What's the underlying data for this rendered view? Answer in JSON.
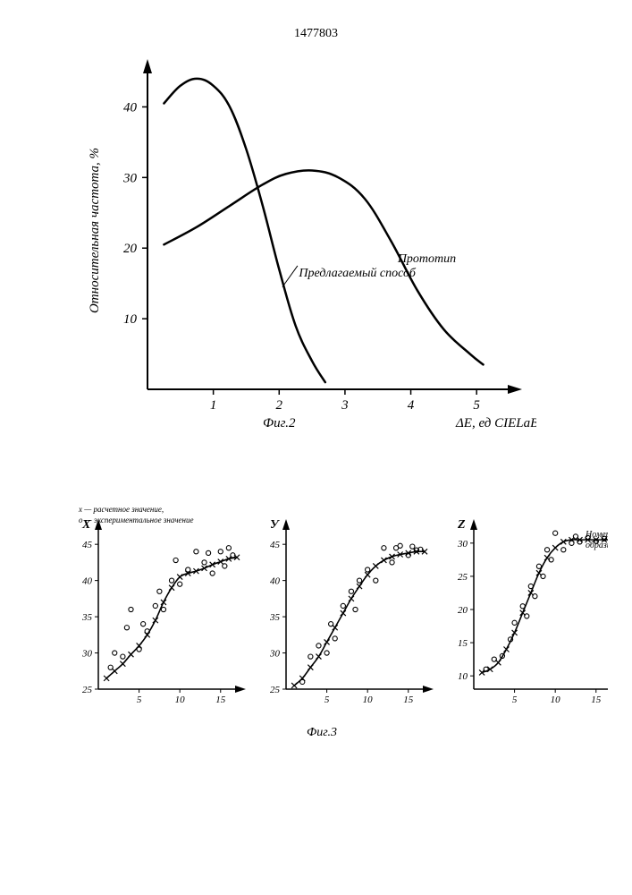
{
  "page_number": "1477803",
  "fig2": {
    "type": "line",
    "title": "Фиг.2",
    "title_fontsize": 15,
    "xlabel": "ΔE, ед CIELаВ",
    "ylabel": "Относительная частота, %",
    "label_fontsize": 15,
    "xlim": [
      0,
      5.5
    ],
    "ylim": [
      0,
      45
    ],
    "xticks": [
      1,
      2,
      3,
      4,
      5
    ],
    "yticks": [
      10,
      20,
      30,
      40
    ],
    "axis_color": "#000000",
    "line_color": "#000000",
    "line_width": 2.5,
    "background_color": "#ffffff",
    "series": [
      {
        "name": "Предлагаемый способ",
        "label_x": 2.3,
        "label_y": 16,
        "points": [
          [
            0.25,
            40.5
          ],
          [
            0.5,
            43
          ],
          [
            0.75,
            44
          ],
          [
            1.0,
            43
          ],
          [
            1.25,
            40
          ],
          [
            1.5,
            34
          ],
          [
            1.75,
            26
          ],
          [
            2.0,
            17
          ],
          [
            2.25,
            9
          ],
          [
            2.5,
            4
          ],
          [
            2.7,
            1
          ]
        ]
      },
      {
        "name": "Прототип",
        "label_x": 3.8,
        "label_y": 18,
        "points": [
          [
            0.25,
            20.5
          ],
          [
            0.75,
            23
          ],
          [
            1.25,
            26
          ],
          [
            1.75,
            29
          ],
          [
            2.1,
            30.5
          ],
          [
            2.5,
            31
          ],
          [
            2.9,
            30
          ],
          [
            3.3,
            27
          ],
          [
            3.7,
            21
          ],
          [
            4.1,
            14
          ],
          [
            4.5,
            8.5
          ],
          [
            4.9,
            5
          ],
          [
            5.1,
            3.5
          ]
        ]
      }
    ]
  },
  "fig3": {
    "type": "scatter",
    "title": "Фиг.3",
    "title_fontsize": 14,
    "legend": {
      "x_label": "х — расчетное значение,",
      "o_label": "о — экспериментальное значение",
      "fontsize": 9
    },
    "axis_color": "#000000",
    "line_color": "#000000",
    "marker_color": "#000000",
    "background_color": "#ffffff",
    "xlabel_common": "Номер образца",
    "xlabel_fontsize": 10,
    "panels": [
      {
        "yletter": "X",
        "xlim": [
          0,
          17
        ],
        "ylim": [
          25,
          47
        ],
        "xticks": [
          5,
          10,
          15
        ],
        "yticks": [
          25,
          30,
          35,
          40,
          45
        ],
        "line_x": [
          [
            1,
            26.5
          ],
          [
            2,
            27.5
          ],
          [
            3,
            28.5
          ],
          [
            4,
            29.8
          ],
          [
            5,
            31
          ],
          [
            6,
            32.5
          ],
          [
            7,
            34.5
          ],
          [
            8,
            37
          ],
          [
            9,
            39
          ],
          [
            10,
            40.5
          ],
          [
            11,
            41
          ],
          [
            12,
            41.3
          ],
          [
            13,
            41.7
          ],
          [
            14,
            42.2
          ],
          [
            15,
            42.6
          ],
          [
            16,
            43
          ],
          [
            17,
            43.2
          ]
        ],
        "circles": [
          [
            1.5,
            28
          ],
          [
            2,
            30
          ],
          [
            3,
            29.5
          ],
          [
            3.5,
            33.5
          ],
          [
            4,
            36
          ],
          [
            5,
            30.5
          ],
          [
            5.5,
            34
          ],
          [
            6,
            33
          ],
          [
            7,
            36.5
          ],
          [
            7.5,
            38.5
          ],
          [
            8,
            36
          ],
          [
            9,
            40
          ],
          [
            9.5,
            42.8
          ],
          [
            10,
            39.5
          ],
          [
            11,
            41.5
          ],
          [
            12,
            44
          ],
          [
            13,
            42.5
          ],
          [
            13.5,
            43.8
          ],
          [
            14,
            41
          ],
          [
            15,
            44
          ],
          [
            15.5,
            42
          ],
          [
            16,
            44.5
          ],
          [
            16.5,
            43.5
          ]
        ]
      },
      {
        "yletter": "У",
        "xlim": [
          0,
          17
        ],
        "ylim": [
          25,
          47
        ],
        "xticks": [
          5,
          10,
          15
        ],
        "yticks": [
          25,
          30,
          35,
          40,
          45
        ],
        "line_x": [
          [
            1,
            25.5
          ],
          [
            2,
            26.5
          ],
          [
            3,
            28
          ],
          [
            4,
            29.5
          ],
          [
            5,
            31.5
          ],
          [
            6,
            33.5
          ],
          [
            7,
            35.5
          ],
          [
            8,
            37.5
          ],
          [
            9,
            39.2
          ],
          [
            10,
            40.8
          ],
          [
            11,
            42
          ],
          [
            12,
            42.8
          ],
          [
            13,
            43.3
          ],
          [
            14,
            43.6
          ],
          [
            15,
            43.8
          ],
          [
            16,
            44
          ],
          [
            17,
            44
          ]
        ],
        "circles": [
          [
            2,
            26
          ],
          [
            3,
            29.5
          ],
          [
            4,
            31
          ],
          [
            5,
            30
          ],
          [
            5.5,
            34
          ],
          [
            6,
            32
          ],
          [
            7,
            36.5
          ],
          [
            8,
            38.5
          ],
          [
            8.5,
            36
          ],
          [
            9,
            40
          ],
          [
            10,
            41.5
          ],
          [
            11,
            40
          ],
          [
            12,
            44.5
          ],
          [
            13,
            42.5
          ],
          [
            13.5,
            44.5
          ],
          [
            14,
            44.8
          ],
          [
            15,
            43.5
          ],
          [
            15.5,
            44.7
          ],
          [
            16,
            44.2
          ],
          [
            16.5,
            44.3
          ]
        ]
      },
      {
        "yletter": "Z",
        "xlim": [
          0,
          17
        ],
        "ylim": [
          8,
          32
        ],
        "xticks": [
          5,
          10,
          15
        ],
        "yticks": [
          10,
          15,
          20,
          25,
          30
        ],
        "line_x": [
          [
            1,
            10.5
          ],
          [
            2,
            11
          ],
          [
            3,
            12
          ],
          [
            4,
            14
          ],
          [
            5,
            16.5
          ],
          [
            6,
            19.5
          ],
          [
            7,
            22.5
          ],
          [
            8,
            25.5
          ],
          [
            9,
            27.8
          ],
          [
            10,
            29.3
          ],
          [
            11,
            30.2
          ],
          [
            12,
            30.5
          ],
          [
            13,
            30.5
          ],
          [
            14,
            30.5
          ],
          [
            15,
            30.5
          ],
          [
            16,
            30.5
          ],
          [
            17,
            30.5
          ]
        ],
        "circles": [
          [
            1.5,
            11
          ],
          [
            2.5,
            12.5
          ],
          [
            3.5,
            13
          ],
          [
            4.5,
            15.5
          ],
          [
            5,
            18
          ],
          [
            6,
            20.5
          ],
          [
            6.5,
            19
          ],
          [
            7,
            23.5
          ],
          [
            7.5,
            22
          ],
          [
            8,
            26.5
          ],
          [
            8.5,
            25
          ],
          [
            9,
            29
          ],
          [
            9.5,
            27.5
          ],
          [
            10,
            31.5
          ],
          [
            11,
            29
          ],
          [
            12,
            30
          ],
          [
            12.5,
            31
          ],
          [
            13,
            30.2
          ],
          [
            14,
            30.8
          ],
          [
            15,
            30.3
          ],
          [
            16,
            30.7
          ]
        ]
      }
    ]
  }
}
